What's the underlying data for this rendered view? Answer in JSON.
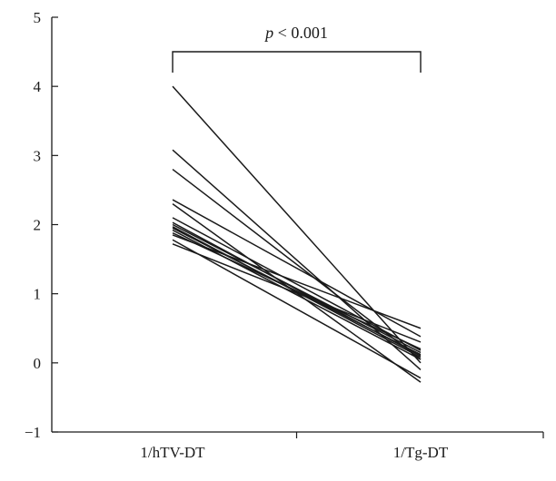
{
  "chart_data": {
    "type": "line",
    "subtype": "paired-slope",
    "categories": [
      "1/hTV-DT",
      "1/Tg-DT"
    ],
    "ylim": [
      -1,
      5
    ],
    "yticks": [
      "5",
      "4",
      "3",
      "2",
      "1",
      "0",
      "−1"
    ],
    "grid": false,
    "legend": "none",
    "annotation": {
      "italic": "p",
      "rest": " < 0.001"
    },
    "series": [
      {
        "values": [
          4.0,
          0.0
        ]
      },
      {
        "values": [
          3.08,
          -0.1
        ]
      },
      {
        "values": [
          2.8,
          0.05
        ]
      },
      {
        "values": [
          2.36,
          0.38
        ]
      },
      {
        "values": [
          2.3,
          -0.28
        ]
      },
      {
        "values": [
          2.1,
          0.18
        ]
      },
      {
        "values": [
          2.03,
          0.1
        ]
      },
      {
        "values": [
          2.0,
          0.15
        ]
      },
      {
        "values": [
          1.97,
          0.08
        ]
      },
      {
        "values": [
          1.95,
          0.12
        ]
      },
      {
        "values": [
          1.92,
          0.05
        ]
      },
      {
        "values": [
          1.88,
          0.2
        ]
      },
      {
        "values": [
          1.85,
          0.5
        ]
      },
      {
        "values": [
          1.78,
          -0.22
        ]
      },
      {
        "values": [
          1.72,
          0.3
        ]
      }
    ],
    "colors": {
      "line": "#1a1a1a",
      "axis": "#1a1a1a"
    }
  }
}
